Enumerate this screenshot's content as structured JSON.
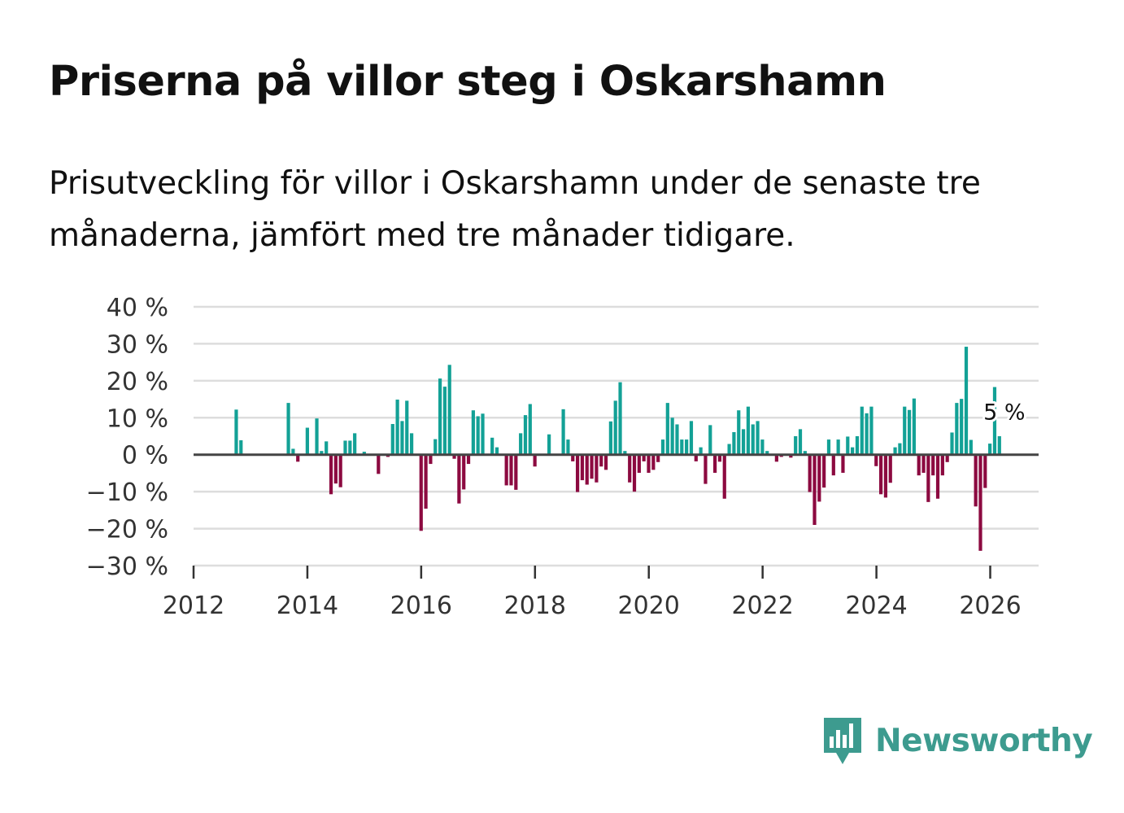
{
  "title": "Priserna på villor steg i Oskarshamn",
  "subtitle": "Prisutveckling för villor i Oskarshamn under de senaste tre månaderna, jämfört med tre månader tidigare.",
  "brand": {
    "name": "Newsworthy"
  },
  "colors": {
    "positive": "#13a196",
    "negative": "#8c0a40",
    "grid": "#dddddd",
    "zero_line": "#444444",
    "brand": "#3d9b8f"
  },
  "chart_data": {
    "type": "bar",
    "title": "Priserna på villor steg i Oskarshamn",
    "xlabel": "",
    "ylabel": "",
    "ylim": [
      -30,
      40
    ],
    "xlim": [
      2012,
      2026.85
    ],
    "y_ticks": [
      40,
      30,
      20,
      10,
      0,
      -10,
      -20,
      -30
    ],
    "y_tick_labels": [
      "40 %",
      "30 %",
      "20 %",
      "10 %",
      "0 %",
      "−10 %",
      "−20 %",
      "−30 %"
    ],
    "x_ticks": [
      2012,
      2014,
      2016,
      2018,
      2020,
      2022,
      2024,
      2026
    ],
    "x_tick_labels": [
      "2012",
      "2014",
      "2016",
      "2018",
      "2020",
      "2022",
      "2024",
      "2026"
    ],
    "grid": true,
    "start": 2012.0,
    "step": 0.0833,
    "values": [
      null,
      null,
      null,
      null,
      null,
      null,
      null,
      null,
      null,
      12.2,
      3.9,
      null,
      null,
      null,
      null,
      null,
      null,
      null,
      null,
      null,
      14.0,
      1.6,
      -1.9,
      null,
      7.3,
      null,
      9.8,
      1.0,
      3.6,
      -10.7,
      -7.8,
      -8.8,
      3.8,
      3.8,
      5.8,
      null,
      0.8,
      null,
      null,
      -5.2,
      null,
      -0.6,
      8.3,
      14.9,
      9.1,
      14.6,
      5.8,
      null,
      -20.6,
      -14.6,
      -2.5,
      4.2,
      20.6,
      18.4,
      24.3,
      -1.1,
      -13.2,
      -9.4,
      -2.5,
      12.0,
      10.4,
      11.1,
      null,
      4.6,
      2.0,
      null,
      -8.3,
      -8.3,
      -9.5,
      5.8,
      10.7,
      13.7,
      -3.2,
      null,
      null,
      5.5,
      null,
      null,
      12.3,
      4.1,
      -1.8,
      -10.1,
      -6.9,
      -8.1,
      -6.5,
      -7.5,
      -3.2,
      -4.1,
      9.0,
      14.6,
      19.6,
      1.0,
      -7.5,
      -10.0,
      -4.9,
      -1.8,
      -4.9,
      -4.1,
      -2.0,
      4.1,
      14.0,
      10.0,
      8.2,
      4.1,
      4.1,
      9.1,
      -1.8,
      2.0,
      -7.9,
      8.0,
      -4.9,
      -1.9,
      -11.9,
      2.9,
      6.1,
      12.0,
      6.9,
      13.0,
      8.2,
      9.1,
      4.1,
      1.0,
      null,
      -1.9,
      -0.6,
      null,
      -0.8,
      5.0,
      6.9,
      1.0,
      -10.1,
      -19.0,
      -12.7,
      -8.9,
      4.1,
      -5.6,
      4.1,
      -4.9,
      4.9,
      2.0,
      5.0,
      13.0,
      11.2,
      13.0,
      -3.1,
      -10.7,
      -11.6,
      -7.6,
      2.0,
      3.1,
      13.0,
      12.1,
      15.2,
      -5.6,
      -4.9,
      -12.8,
      -5.6,
      -11.9,
      -5.6,
      -2.0,
      6.0,
      14.0,
      15.1,
      29.2,
      4.0,
      -14.0,
      -26.0,
      -9.0,
      3.0,
      18.3,
      5.0
    ],
    "annotation": {
      "label": "5 %",
      "value": 5.0
    }
  }
}
